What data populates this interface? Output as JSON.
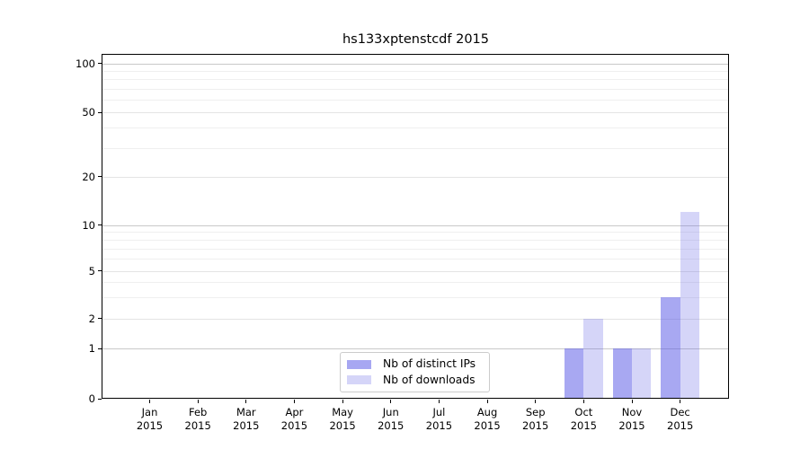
{
  "chart_data": {
    "type": "bar",
    "title": "hs133xptenstcdf 2015",
    "xlabel": "",
    "ylabel": "",
    "yscale": "symlog",
    "ylim": [
      0,
      114
    ],
    "grid": true,
    "legend_position": "lower center",
    "categories": [
      "Jan",
      "Feb",
      "Mar",
      "Apr",
      "May",
      "Jun",
      "Jul",
      "Aug",
      "Sep",
      "Oct",
      "Nov",
      "Dec"
    ],
    "category_year": "2015",
    "y_ticks": [
      0,
      1,
      2,
      5,
      10,
      20,
      50,
      100
    ],
    "y_ticks_power_of_ten": [
      1,
      10,
      100
    ],
    "y_ticks_intermediate": [
      2,
      5,
      20,
      50
    ],
    "y_minor_ticks": [
      3,
      4,
      6,
      7,
      8,
      9,
      30,
      40,
      60,
      70,
      80,
      90
    ],
    "series": [
      {
        "name": "Nb of distinct IPs",
        "color": "rgba(88,88,230,0.52)",
        "legend_color": "#a7a7f2",
        "values": [
          0,
          0,
          0,
          0,
          0,
          0,
          0,
          0,
          0,
          1,
          1,
          3
        ]
      },
      {
        "name": "Nb of downloads",
        "color": "rgba(105,105,230,0.28)",
        "legend_color": "#d5d5f8",
        "values": [
          0,
          0,
          0,
          0,
          0,
          0,
          0,
          0,
          0,
          2,
          1,
          12
        ]
      }
    ]
  }
}
